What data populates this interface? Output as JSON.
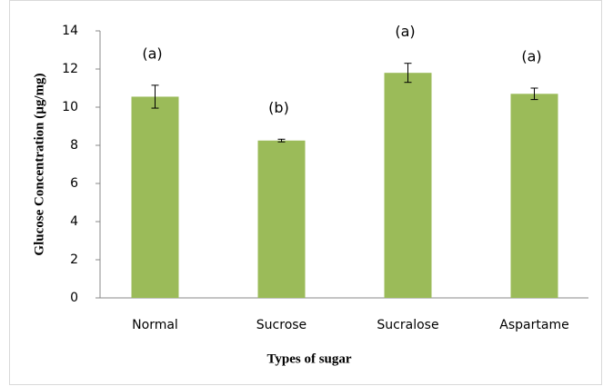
{
  "chart_data": {
    "type": "bar",
    "xlabel": "Types of sugar",
    "ylabel": "Glucose Concentration (µg/mg)",
    "categories": [
      "Normal",
      "Sucrose",
      "Sucralose",
      "Aspartame"
    ],
    "values": [
      10.55,
      8.25,
      11.8,
      10.7
    ],
    "errors": [
      0.6,
      0.07,
      0.5,
      0.3
    ],
    "annotations": [
      "(a)",
      "(b)",
      "(a)",
      "(a)"
    ],
    "color": "#9bbb59",
    "ylim": [
      0,
      14
    ],
    "yticks": [
      0,
      2,
      4,
      6,
      8,
      10,
      12,
      14
    ],
    "grid": false
  }
}
